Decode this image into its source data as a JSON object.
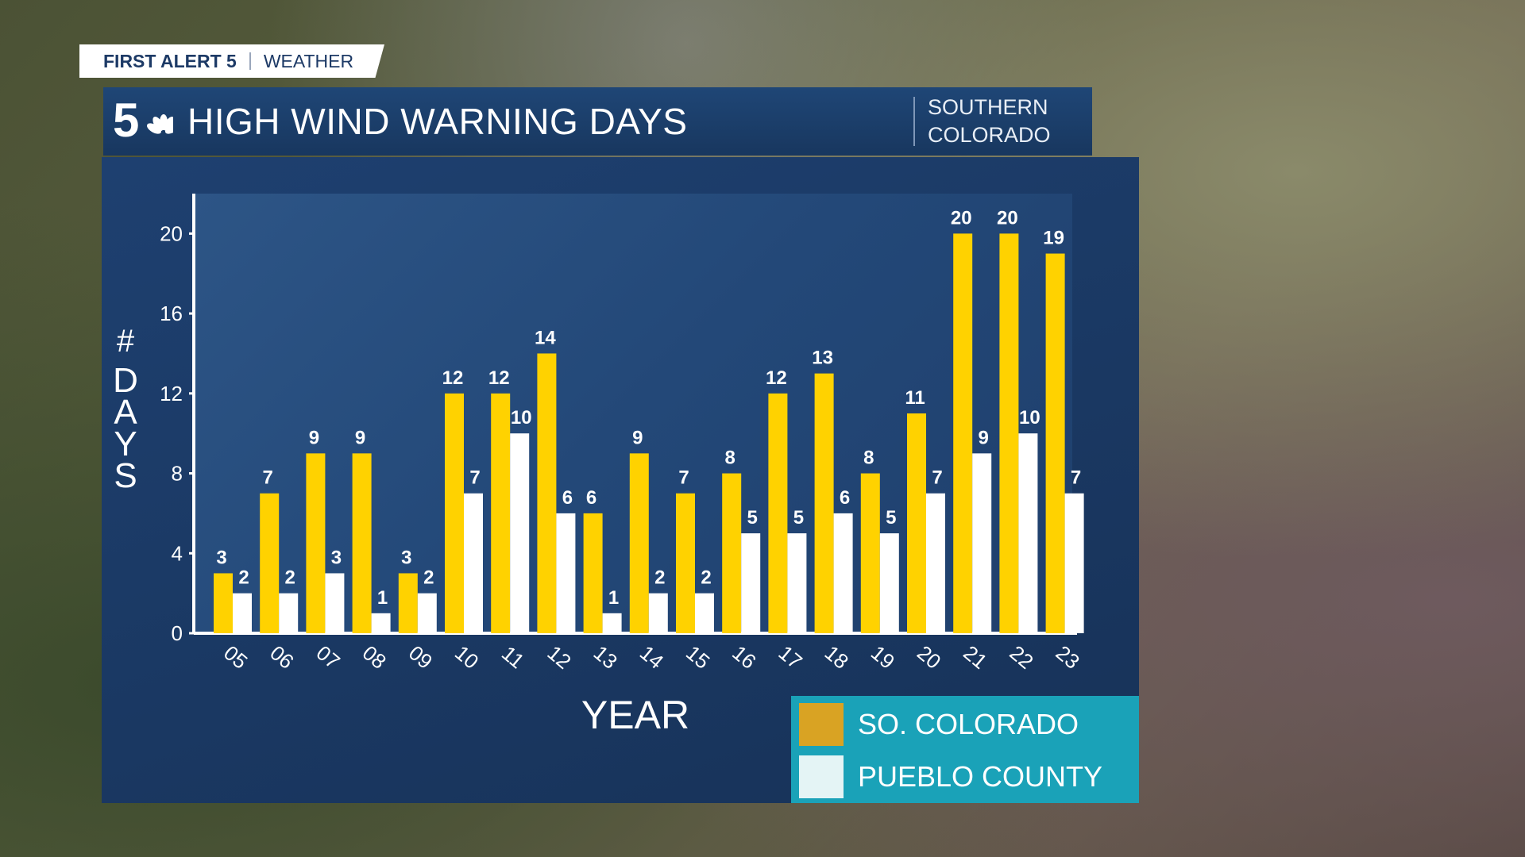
{
  "brand": {
    "name": "FIRST ALERT 5",
    "section": "WEATHER"
  },
  "logo": {
    "number": "5"
  },
  "title": "HIGH WIND WARNING DAYS",
  "region": {
    "line1": "SOUTHERN",
    "line2": "COLORADO"
  },
  "colors": {
    "so_colorado": "#FFD200",
    "pueblo": "#FFFFFF",
    "legend_bg": "#1AA2B8",
    "panel": "#1E4070",
    "so_colorado_swatch": "#D9A323",
    "pueblo_swatch": "#E4F4F5"
  },
  "chart_data": {
    "type": "bar",
    "categories": [
      "05",
      "06",
      "07",
      "08",
      "09",
      "10",
      "11",
      "12",
      "13",
      "14",
      "15",
      "16",
      "17",
      "18",
      "19",
      "20",
      "21",
      "22",
      "23"
    ],
    "series": [
      {
        "name": "SO. COLORADO",
        "values": [
          3,
          7,
          9,
          9,
          3,
          12,
          12,
          14,
          6,
          9,
          7,
          8,
          12,
          13,
          8,
          11,
          20,
          20,
          19
        ]
      },
      {
        "name": "PUEBLO COUNTY",
        "values": [
          2,
          2,
          3,
          1,
          2,
          7,
          10,
          6,
          1,
          2,
          2,
          5,
          5,
          6,
          5,
          7,
          9,
          10,
          7
        ]
      }
    ],
    "yticks": [
      0,
      4,
      8,
      12,
      16,
      20
    ],
    "ylim": [
      0,
      22
    ],
    "xlabel": "YEAR",
    "ylabel": "# DAYS",
    "legend_position": "bottom-right"
  }
}
